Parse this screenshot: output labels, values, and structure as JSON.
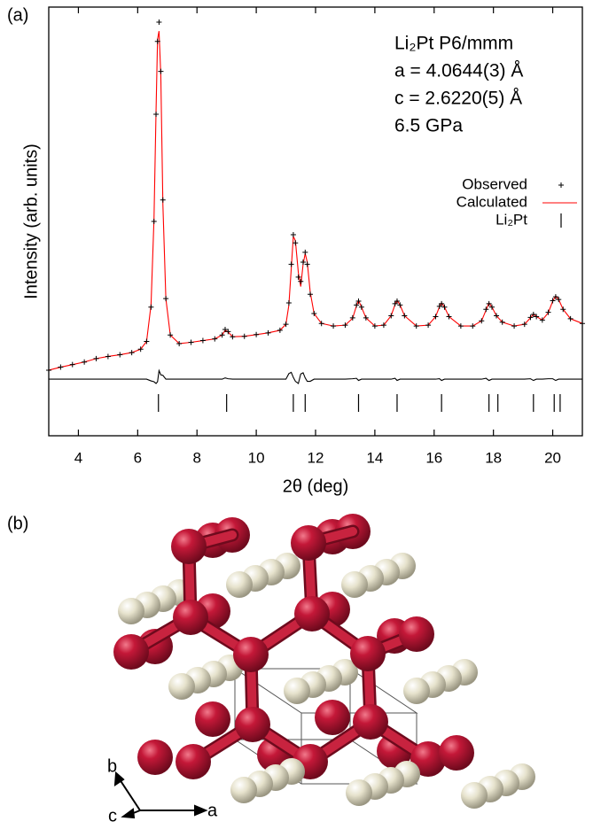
{
  "chart_data": {
    "type": "line",
    "panel_label": "(a)",
    "x_label": "2θ (deg)",
    "y_label": "Intensity (arb. units)",
    "annotations": [
      "Li₂Pt P6/mmm",
      "a = 4.0644(3) Å",
      "c = 2.6220(5) Å",
      "6.5 GPa"
    ],
    "xlim": [
      3,
      21
    ],
    "xticks": [
      4,
      6,
      8,
      10,
      12,
      14,
      16,
      18,
      20
    ],
    "ylim": [
      0,
      100
    ],
    "x": [
      3,
      3.4,
      3.8,
      4.2,
      4.6,
      5,
      5.4,
      5.8,
      6.1,
      6.3,
      6.45,
      6.55,
      6.62,
      6.67,
      6.72,
      6.78,
      6.85,
      6.95,
      7.1,
      7.4,
      7.8,
      8.2,
      8.6,
      8.85,
      8.95,
      9.05,
      9.2,
      9.6,
      10,
      10.4,
      10.8,
      11,
      11.1,
      11.18,
      11.25,
      11.32,
      11.42,
      11.5,
      11.58,
      11.65,
      11.72,
      11.82,
      11.95,
      12.2,
      12.6,
      13,
      13.25,
      13.38,
      13.45,
      13.55,
      13.7,
      14,
      14.3,
      14.55,
      14.68,
      14.75,
      14.85,
      15,
      15.4,
      15.8,
      16.05,
      16.18,
      16.25,
      16.35,
      16.5,
      16.9,
      17.3,
      17.6,
      17.75,
      17.85,
      17.95,
      18.1,
      18.3,
      18.7,
      19.05,
      19.25,
      19.35,
      19.45,
      19.65,
      19.85,
      20,
      20.1,
      20.2,
      20.35,
      20.6,
      21
    ],
    "series": [
      {
        "name": "Observed",
        "color": "#000000",
        "marker": "+",
        "values": [
          15.3,
          16,
          16.6,
          17.2,
          18,
          18.5,
          18.9,
          19.4,
          20.2,
          22,
          30,
          50,
          75,
          92,
          96.5,
          85,
          55,
          32,
          23.5,
          21.5,
          21.8,
          22.2,
          22.6,
          23.5,
          24.8,
          24.3,
          23.1,
          23.2,
          23.6,
          24,
          24.6,
          26,
          31,
          40,
          46.9,
          45,
          37,
          36,
          40.5,
          42.8,
          40,
          33,
          28.5,
          26.2,
          25.6,
          25.8,
          27.5,
          30.5,
          31.4,
          30,
          27.5,
          25.6,
          25.8,
          28,
          30.8,
          31.4,
          30.5,
          28,
          25.6,
          25.8,
          27.8,
          30.2,
          30.8,
          30,
          27.8,
          25.6,
          25.6,
          26.8,
          29.5,
          30.8,
          30,
          28,
          26.5,
          25.6,
          26,
          27.6,
          28.3,
          27.8,
          27,
          28.8,
          31.5,
          32.4,
          31.8,
          29.5,
          27.3,
          26.2
        ]
      },
      {
        "name": "Calculated",
        "color": "#ff0000",
        "values": [
          15.3,
          16,
          16.6,
          17.2,
          18,
          18.5,
          18.9,
          19.4,
          20.2,
          22,
          30.5,
          50.5,
          76,
          92.5,
          94.4,
          84,
          54,
          32,
          23.5,
          21.5,
          21.8,
          22.2,
          22.6,
          23.5,
          24.6,
          24.2,
          23.1,
          23.2,
          23.6,
          24,
          24.6,
          26,
          30.5,
          39,
          46.5,
          45.5,
          38,
          34.8,
          40,
          42.5,
          40.5,
          33.5,
          28.5,
          26.2,
          25.6,
          25.8,
          27.4,
          30.3,
          31.6,
          30,
          27.5,
          25.6,
          25.8,
          28,
          30.6,
          31.6,
          30.5,
          28,
          25.6,
          25.8,
          27.8,
          30.1,
          31,
          30,
          27.8,
          25.6,
          25.6,
          26.8,
          29.3,
          31,
          30,
          28,
          26.5,
          25.6,
          26,
          27.5,
          28.4,
          27.8,
          27,
          28.7,
          31.4,
          32.6,
          31.8,
          29.5,
          27.3,
          26.2
        ]
      },
      {
        "color": "#000000",
        "values": [
          13.2,
          13.2,
          13.2,
          13.2,
          13.2,
          13.2,
          13.2,
          13.2,
          13.2,
          13.2,
          12.8,
          12.6,
          12.2,
          12.6,
          15.2,
          14.2,
          14.1,
          13.2,
          13.2,
          13.2,
          13.2,
          13.2,
          13.2,
          13.2,
          13.5,
          13.3,
          13.2,
          13.2,
          13.2,
          13.2,
          13.2,
          13.2,
          14.5,
          14.8,
          13.6,
          12.7,
          12.2,
          14.4,
          14.7,
          13.5,
          12.7,
          12.7,
          13.2,
          13.2,
          13.2,
          13.2,
          13.3,
          13.4,
          12.9,
          13.2,
          13.2,
          13.2,
          13.2,
          13.2,
          13.4,
          12.9,
          13.2,
          13.2,
          13.2,
          13.2,
          13.2,
          13.3,
          12.9,
          13.2,
          13.2,
          13.2,
          13.2,
          13.2,
          13.4,
          12.9,
          13.2,
          13.2,
          13.2,
          13.2,
          13.2,
          13.3,
          12.9,
          13.2,
          13.2,
          13.3,
          13.3,
          12.9,
          13.2,
          13.2,
          13.2,
          13.2
        ]
      }
    ],
    "reflections": {
      "name": "Li₂Pt",
      "color": "#000000",
      "x": [
        6.7,
        9.0,
        11.25,
        11.65,
        13.45,
        14.75,
        16.25,
        17.85,
        18.15,
        19.35,
        20.05,
        20.25
      ]
    }
  },
  "structure": {
    "panel_label": "(b)",
    "axes": {
      "a": "a",
      "b": "b",
      "c": "c"
    }
  }
}
